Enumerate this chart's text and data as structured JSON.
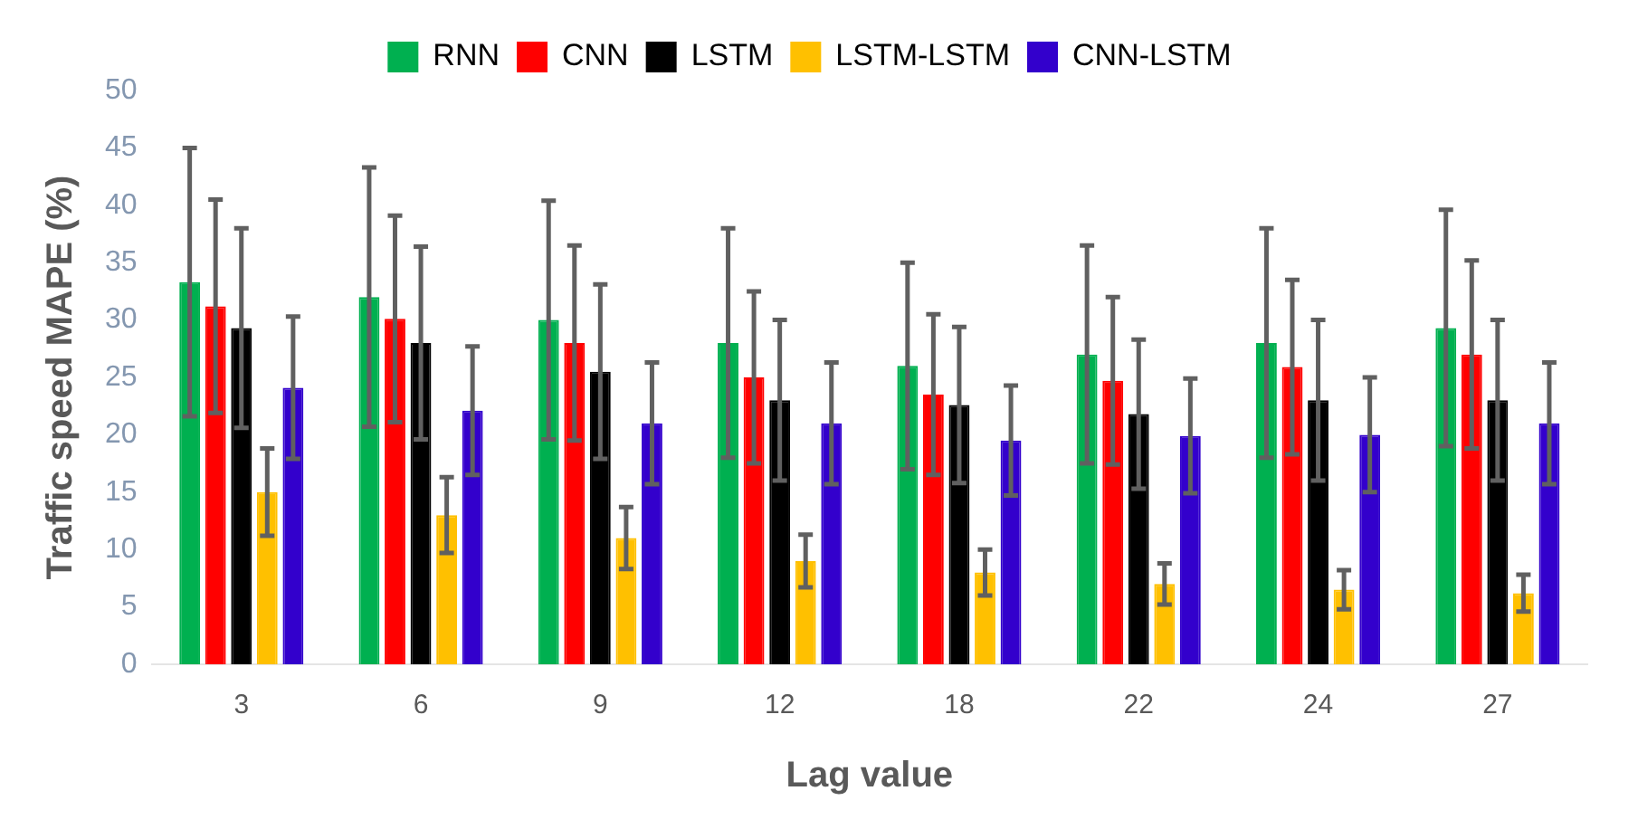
{
  "chart_data": {
    "type": "bar",
    "xlabel": "Lag value",
    "ylabel": "Traffic speed MAPE (%)",
    "categories": [
      "3",
      "6",
      "9",
      "12",
      "18",
      "22",
      "24",
      "27"
    ],
    "ylim": [
      0,
      50
    ],
    "yticks": [
      0,
      5,
      10,
      15,
      20,
      25,
      30,
      35,
      40,
      45,
      50
    ],
    "grid": false,
    "legend": "top",
    "series": [
      {
        "name": "RNN",
        "color": "#00b050",
        "values": [
          33.3,
          32,
          30,
          28,
          26,
          27,
          28,
          29.3
        ],
        "errors": [
          11.7,
          11.3,
          10.4,
          10,
          9,
          9.5,
          10,
          10.3
        ]
      },
      {
        "name": "CNN",
        "color": "#ff0000",
        "values": [
          31.2,
          30.1,
          28,
          25,
          23.5,
          24.7,
          25.9,
          27
        ],
        "errors": [
          9.3,
          9,
          8.5,
          7.5,
          7,
          7.3,
          7.6,
          8.2
        ]
      },
      {
        "name": "LSTM",
        "color": "#000000",
        "values": [
          29.3,
          28,
          25.5,
          23,
          22.6,
          21.8,
          23,
          23
        ],
        "errors": [
          8.7,
          8.4,
          7.6,
          7,
          6.8,
          6.5,
          7,
          7
        ]
      },
      {
        "name": "LSTM-LSTM",
        "color": "#ffc000",
        "values": [
          15,
          13,
          11,
          9,
          8,
          7,
          6.5,
          6.2
        ],
        "errors": [
          3.8,
          3.3,
          2.7,
          2.3,
          2,
          1.8,
          1.7,
          1.6
        ]
      },
      {
        "name": "CNN-LSTM",
        "color": "#3300cc",
        "values": [
          24.1,
          22.1,
          21,
          21,
          19.5,
          19.9,
          20,
          21
        ],
        "errors": [
          6.2,
          5.6,
          5.3,
          5.3,
          4.8,
          5,
          5,
          5.3
        ]
      }
    ]
  }
}
